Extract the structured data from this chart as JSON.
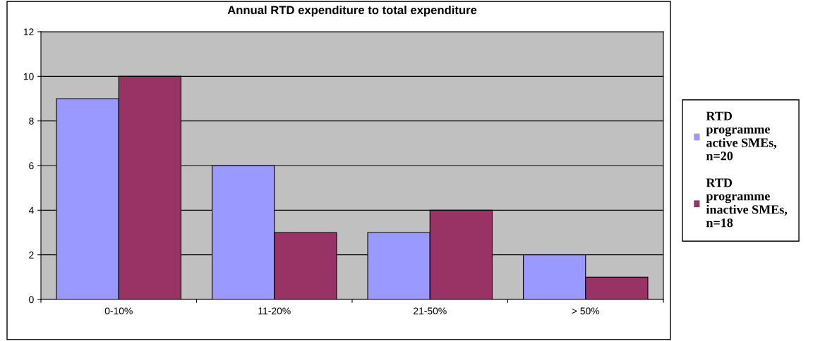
{
  "chart_data": {
    "type": "bar",
    "title": "Annual RTD expenditure to total expenditure",
    "categories": [
      "0-10%",
      "11-20%",
      "21-50%",
      "> 50%"
    ],
    "series": [
      {
        "name": "RTD\nprogramme\nactive SMEs,\nn=20",
        "color": "#9999ff",
        "values": [
          9,
          6,
          3,
          2
        ]
      },
      {
        "name": "RTD\nprogramme\ninactive SMEs,\nn=18",
        "color": "#993366",
        "values": [
          10,
          3,
          4,
          1
        ]
      }
    ],
    "ylim": [
      0,
      12
    ],
    "yticks": [
      0,
      2,
      4,
      6,
      8,
      10,
      12
    ],
    "grid": "y",
    "legend": "right"
  }
}
